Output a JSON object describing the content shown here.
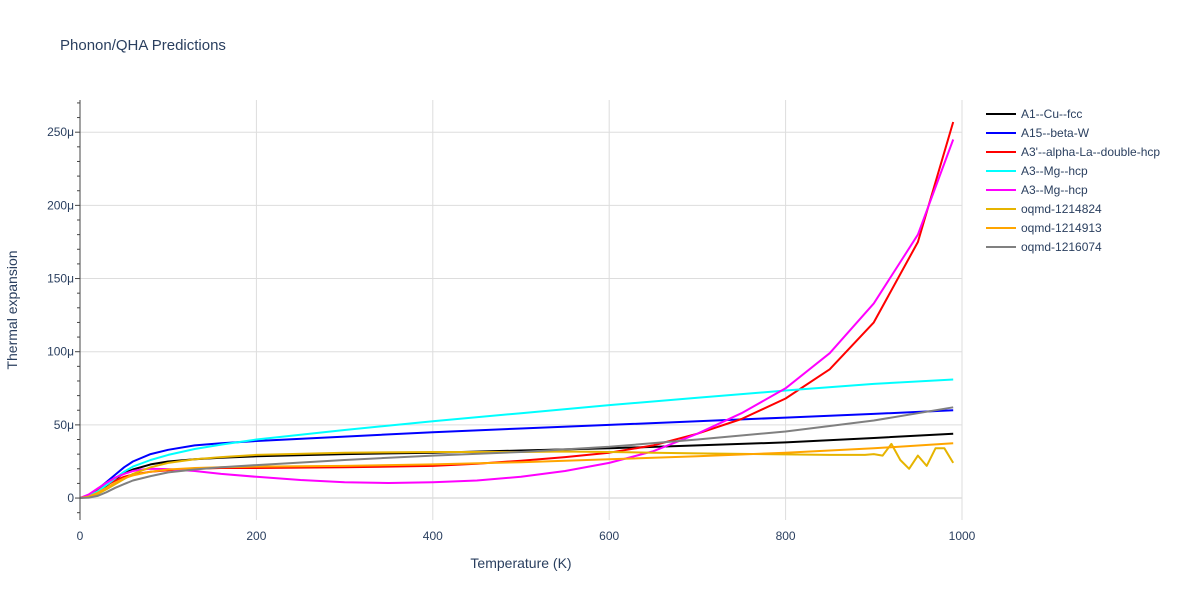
{
  "chart_data": {
    "type": "line",
    "title": "Phonon/QHA Predictions",
    "xlabel": "Temperature (K)",
    "ylabel": "Thermal expansion",
    "xlim": [
      0,
      1000
    ],
    "ylim": [
      -15,
      272
    ],
    "x_ticks": [
      0,
      200,
      400,
      600,
      800,
      1000
    ],
    "y_ticks": [
      0,
      50,
      100,
      150,
      200,
      250
    ],
    "y_tick_labels": [
      "0",
      "50μ",
      "100μ",
      "150μ",
      "200μ",
      "250μ"
    ],
    "grid": true,
    "legend_position": "right",
    "series": [
      {
        "name": "A1--Cu--fcc",
        "color": "#000000",
        "x": [
          0,
          10,
          20,
          30,
          40,
          50,
          60,
          80,
          100,
          130,
          160,
          200,
          300,
          400,
          500,
          600,
          700,
          800,
          900,
          990
        ],
        "y": [
          0,
          1,
          4,
          8.5,
          13,
          17,
          19.5,
          23,
          25,
          26.5,
          27.5,
          28.5,
          30,
          31,
          32.5,
          34,
          36,
          38,
          41,
          44
        ]
      },
      {
        "name": "A15--beta-W",
        "color": "#0000ff",
        "x": [
          0,
          10,
          20,
          30,
          40,
          50,
          60,
          80,
          100,
          130,
          160,
          200,
          300,
          400,
          500,
          600,
          700,
          800,
          900,
          990
        ],
        "y": [
          0,
          2,
          6,
          11,
          16,
          21,
          25,
          30,
          33,
          36,
          37.5,
          39,
          42,
          45,
          47.5,
          50,
          52.5,
          55,
          57.5,
          60
        ]
      },
      {
        "name": "A3'--alpha-La--double-hcp",
        "color": "#ff0000",
        "x": [
          0,
          10,
          20,
          30,
          40,
          50,
          60,
          80,
          100,
          130,
          160,
          200,
          300,
          400,
          450,
          500,
          550,
          600,
          650,
          700,
          750,
          800,
          850,
          900,
          950,
          990
        ],
        "y": [
          0,
          1.5,
          5,
          9,
          12,
          14.5,
          16,
          18,
          19,
          20,
          20.5,
          20.5,
          21,
          22,
          23.5,
          25.5,
          28,
          31,
          36,
          44,
          54,
          68,
          88,
          120,
          175,
          257
        ]
      },
      {
        "name": "A3--Mg--hcp",
        "color": "#00ffff",
        "x": [
          0,
          10,
          20,
          30,
          40,
          50,
          60,
          80,
          100,
          130,
          160,
          200,
          300,
          400,
          500,
          600,
          700,
          800,
          900,
          990
        ],
        "y": [
          0,
          1.5,
          4.5,
          9,
          13.5,
          18,
          21.5,
          26,
          29.5,
          33.5,
          36.5,
          40,
          46.5,
          52.5,
          58,
          63.5,
          68.5,
          73.5,
          78,
          81
        ]
      },
      {
        "name": "A3--Mg--hcp",
        "color": "#ff00ff",
        "x": [
          0,
          10,
          20,
          30,
          40,
          50,
          60,
          70,
          80,
          100,
          130,
          160,
          200,
          250,
          300,
          350,
          400,
          450,
          500,
          550,
          600,
          650,
          700,
          750,
          800,
          850,
          900,
          950,
          990
        ],
        "y": [
          0,
          2.5,
          6.5,
          10.5,
          14,
          16.5,
          18.5,
          19.5,
          20,
          19.8,
          18.5,
          16.5,
          14.5,
          12.3,
          10.8,
          10.3,
          10.8,
          12,
          14.5,
          18.5,
          24,
          32,
          44,
          58,
          75,
          99,
          133,
          180,
          245
        ]
      },
      {
        "name": "oqmd-1214824",
        "color": "#e6b400",
        "x": [
          0,
          10,
          20,
          30,
          40,
          50,
          60,
          80,
          100,
          130,
          160,
          200,
          300,
          400,
          500,
          550,
          600,
          650,
          700,
          800,
          850,
          890,
          900,
          910,
          920,
          930,
          940,
          950,
          960,
          970,
          980,
          990
        ],
        "y": [
          0,
          0.8,
          2.8,
          6,
          9.5,
          13,
          16.5,
          21,
          24,
          26.5,
          28,
          29.5,
          31,
          31.5,
          31.5,
          31.8,
          31.5,
          31,
          30.5,
          29.8,
          29.5,
          29.5,
          30,
          29,
          37,
          26,
          20,
          29,
          22,
          34,
          34,
          24
        ]
      },
      {
        "name": "oqmd-1214913",
        "color": "#ffa500",
        "x": [
          0,
          10,
          20,
          30,
          40,
          50,
          60,
          80,
          100,
          130,
          160,
          200,
          300,
          400,
          500,
          600,
          700,
          800,
          900,
          990
        ],
        "y": [
          0,
          1,
          3.5,
          7,
          10.5,
          13.5,
          15.5,
          18,
          19.5,
          20.5,
          21,
          21.5,
          22,
          23,
          24.5,
          26.5,
          28.5,
          31,
          34,
          37.5
        ]
      },
      {
        "name": "oqmd-1216074",
        "color": "#808080",
        "x": [
          0,
          10,
          20,
          30,
          40,
          50,
          60,
          80,
          100,
          130,
          160,
          200,
          300,
          400,
          500,
          600,
          700,
          800,
          900,
          990
        ],
        "y": [
          0,
          0.3,
          1.5,
          4,
          7,
          9.5,
          12,
          15,
          17.5,
          19.5,
          21,
          22.5,
          26,
          29,
          31.5,
          35,
          40,
          45.5,
          53,
          62
        ]
      }
    ]
  }
}
